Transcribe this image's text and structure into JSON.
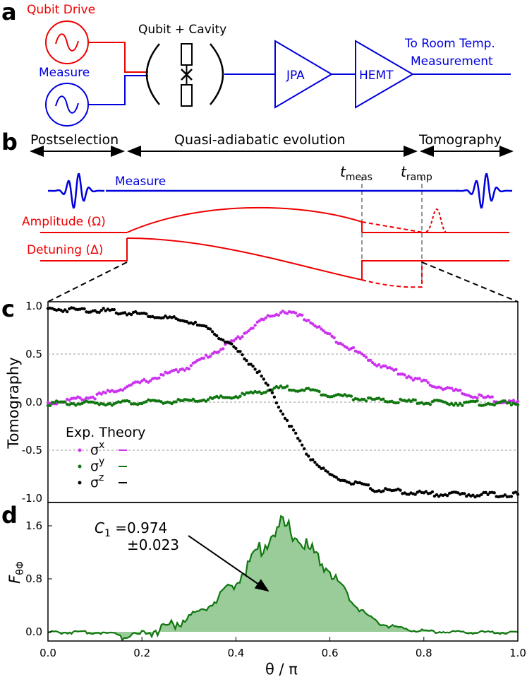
{
  "panels": {
    "a": "a",
    "b": "b",
    "c": "c",
    "d": "d"
  },
  "circuit": {
    "qubit_drive": "Qubit Drive",
    "measure": "Measure",
    "qubit_cavity": "Qubit + Cavity",
    "jpa": "JPA",
    "hemt": "HEMT",
    "room_temp_line1": "To Room Temp.",
    "room_temp_line2": "Measurement"
  },
  "timeline": {
    "postselection": "Postselection",
    "evolution": "Quasi-adiabatic evolution",
    "tomography": "Tomography",
    "t_meas": "t",
    "t_meas_sub": "meas",
    "t_ramp": "t",
    "t_ramp_sub": "ramp",
    "measure_label": "Measure",
    "amplitude_label": "Amplitude (Ω)",
    "detuning_label": "Detuning (Δ)"
  },
  "colors": {
    "red": "#ee0000",
    "blue": "#0000dd",
    "magenta": "#cc33ee",
    "green": "#117711",
    "black": "#000000",
    "fill_green": "#99cc99"
  },
  "legend": {
    "header": "Exp. Theory",
    "sx": "σ",
    "sx_sup": "x",
    "sy": "σ",
    "sy_sup": "y",
    "sz": "σ",
    "sz_sup": "z"
  },
  "annotation": {
    "c1_name": "C",
    "c1_sub": "1",
    "c1_value": " =0.974",
    "c1_error": "±0.023"
  },
  "chart_data": [
    {
      "type": "scatter",
      "panel": "c",
      "ylabel": "Tomography",
      "xlim": [
        0.0,
        1.0
      ],
      "ylim": [
        -1.05,
        1.05
      ],
      "yticks": [
        "1.0",
        "0.5",
        "0.0",
        "-0.5",
        "-1.0"
      ],
      "ytick_values": [
        1.0,
        0.5,
        0.0,
        -0.5,
        -1.0
      ],
      "grid": "dashed horizontal at ticks",
      "legend_position": "lower-left",
      "series": [
        {
          "name": "σx",
          "x": [
            0.0,
            0.1,
            0.2,
            0.3,
            0.4,
            0.45,
            0.5,
            0.55,
            0.6,
            0.7,
            0.8,
            0.9,
            1.0
          ],
          "values": [
            0.0,
            0.07,
            0.22,
            0.38,
            0.66,
            0.85,
            0.96,
            0.88,
            0.7,
            0.41,
            0.22,
            0.08,
            0.0
          ]
        },
        {
          "name": "σy",
          "x": [
            0.0,
            0.1,
            0.2,
            0.3,
            0.4,
            0.45,
            0.5,
            0.55,
            0.6,
            0.7,
            0.8,
            0.9,
            1.0
          ],
          "values": [
            0.0,
            0.0,
            0.01,
            0.02,
            0.07,
            0.12,
            0.16,
            0.14,
            0.09,
            0.03,
            0.01,
            0.0,
            0.0
          ]
        },
        {
          "name": "σz",
          "x": [
            0.0,
            0.1,
            0.2,
            0.3,
            0.35,
            0.4,
            0.45,
            0.5,
            0.55,
            0.6,
            0.7,
            0.8,
            0.9,
            1.0
          ],
          "values": [
            0.98,
            0.97,
            0.93,
            0.85,
            0.75,
            0.56,
            0.32,
            -0.1,
            -0.52,
            -0.76,
            -0.9,
            -0.94,
            -0.95,
            -0.95
          ]
        }
      ]
    },
    {
      "type": "area",
      "panel": "d",
      "xlabel": "θ / π",
      "ylabel": "F",
      "ylabel_sub": "θΦ",
      "xlim": [
        0.0,
        1.0
      ],
      "ylim": [
        -0.1,
        1.75
      ],
      "xticks": [
        "0.0",
        "0.2",
        "0.4",
        "0.6",
        "0.8",
        "1.0"
      ],
      "xtick_values": [
        0.0,
        0.2,
        0.4,
        0.6,
        0.8,
        1.0
      ],
      "yticks": [
        "1.6",
        "0.8",
        "0.0"
      ],
      "ytick_values": [
        1.6,
        0.8,
        0.0
      ],
      "x": [
        0.0,
        0.1,
        0.15,
        0.2,
        0.25,
        0.3,
        0.35,
        0.4,
        0.45,
        0.5,
        0.52,
        0.55,
        0.6,
        0.65,
        0.7,
        0.75,
        0.8,
        0.9,
        1.0
      ],
      "values": [
        0.0,
        0.0,
        -0.02,
        0.0,
        0.1,
        0.25,
        0.45,
        0.78,
        1.3,
        1.68,
        1.55,
        1.35,
        0.95,
        0.45,
        0.15,
        0.06,
        0.02,
        0.0,
        0.0
      ]
    }
  ]
}
